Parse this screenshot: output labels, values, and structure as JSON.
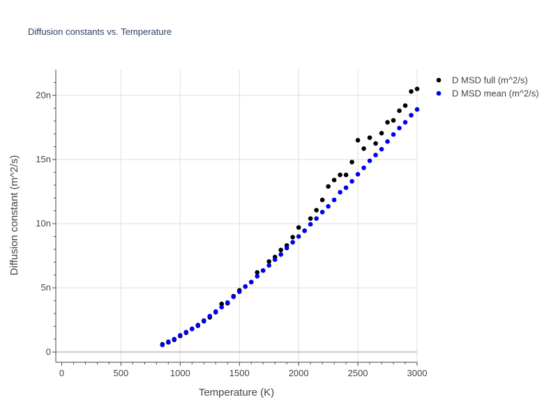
{
  "chart_data": {
    "type": "scatter",
    "title": "Diffusion constants vs. Temperature",
    "xlabel": "Temperature (K)",
    "ylabel": "Diffusion constant (m^2/s)",
    "xlim": [
      -50,
      3000
    ],
    "ylim": [
      -0.8,
      22
    ],
    "xticks": [
      0,
      500,
      1000,
      1500,
      2000,
      2500,
      3000
    ],
    "xtick_labels": [
      "0",
      "500",
      "1000",
      "1500",
      "2000",
      "2500",
      "3000"
    ],
    "yticks": [
      0,
      5,
      10,
      15,
      20
    ],
    "ytick_labels": [
      "0",
      "5n",
      "10n",
      "15n",
      "20n"
    ],
    "grid": true,
    "legend_position": "top-right, outside plot",
    "series": [
      {
        "name": "D MSD full (m^2/s)",
        "color": "#000000",
        "x": [
          850,
          900,
          950,
          1000,
          1050,
          1100,
          1150,
          1200,
          1250,
          1300,
          1350,
          1400,
          1450,
          1500,
          1550,
          1600,
          1650,
          1700,
          1750,
          1800,
          1850,
          1900,
          1950,
          2000,
          2050,
          2100,
          2150,
          2200,
          2250,
          2300,
          2350,
          2400,
          2450,
          2500,
          2550,
          2600,
          2650,
          2700,
          2750,
          2800,
          2850,
          2900,
          2950,
          3000
        ],
        "y": [
          0.6,
          0.75,
          0.95,
          1.25,
          1.5,
          1.8,
          2.05,
          2.4,
          2.7,
          3.1,
          3.75,
          3.8,
          4.35,
          4.8,
          5.1,
          5.45,
          6.2,
          6.35,
          7.05,
          7.4,
          7.95,
          8.3,
          8.95,
          9.7,
          9.45,
          10.4,
          11.05,
          11.85,
          12.9,
          13.4,
          13.8,
          13.8,
          14.8,
          16.5,
          15.85,
          16.7,
          16.25,
          17.05,
          17.9,
          18.05,
          18.8,
          19.2,
          20.3,
          20.5
        ]
      },
      {
        "name": "D MSD mean (m^2/s)",
        "color": "#0000ee",
        "x": [
          850,
          900,
          950,
          1000,
          1050,
          1100,
          1150,
          1200,
          1250,
          1300,
          1350,
          1400,
          1450,
          1500,
          1550,
          1600,
          1650,
          1700,
          1750,
          1800,
          1850,
          1900,
          1950,
          2000,
          2050,
          2100,
          2150,
          2200,
          2250,
          2300,
          2350,
          2400,
          2450,
          2500,
          2550,
          2600,
          2650,
          2700,
          2750,
          2800,
          2850,
          2900,
          2950,
          3000
        ],
        "y": [
          0.55,
          0.8,
          1.0,
          1.3,
          1.55,
          1.8,
          2.1,
          2.45,
          2.8,
          3.15,
          3.5,
          3.85,
          4.3,
          4.7,
          5.1,
          5.45,
          5.9,
          6.35,
          6.75,
          7.2,
          7.6,
          8.1,
          8.55,
          9.0,
          9.45,
          9.95,
          10.4,
          10.9,
          11.35,
          11.85,
          12.45,
          12.8,
          13.3,
          13.85,
          14.35,
          14.9,
          15.35,
          15.8,
          16.4,
          16.95,
          17.45,
          17.9,
          18.45,
          18.9
        ]
      }
    ]
  }
}
